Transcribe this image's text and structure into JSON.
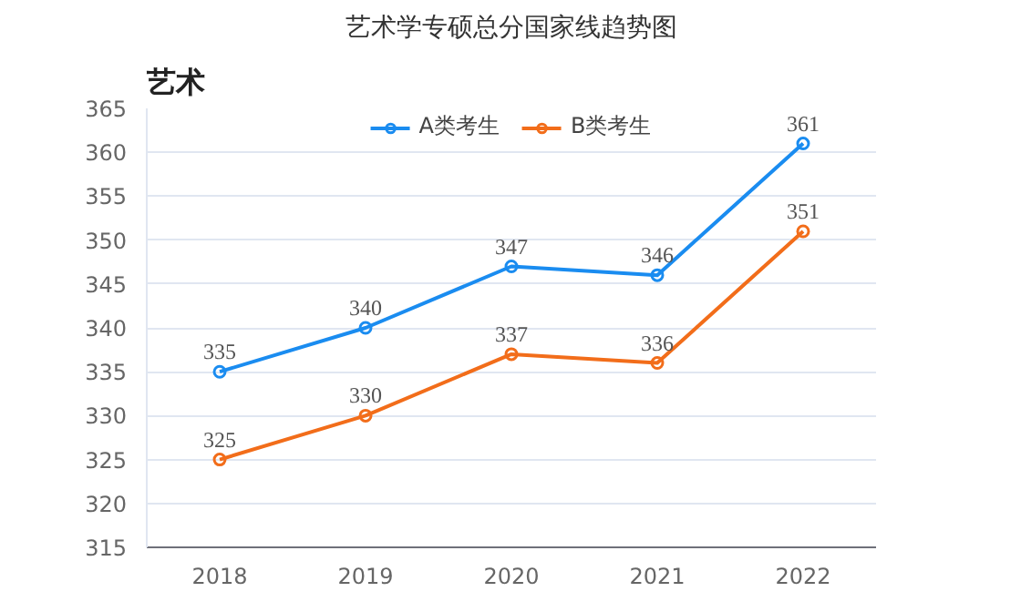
{
  "chart_data": {
    "type": "line",
    "title": "艺术学专硕总分国家线趋势图",
    "annotations": [
      "艺术"
    ],
    "categories": [
      "2018",
      "2019",
      "2020",
      "2021",
      "2022"
    ],
    "series": [
      {
        "name": "A类考生",
        "color": "#1a8cf0",
        "values": [
          335,
          340,
          347,
          346,
          361
        ]
      },
      {
        "name": "B类考生",
        "color": "#f26d1a",
        "values": [
          325,
          330,
          337,
          336,
          351
        ]
      }
    ],
    "ylim": [
      315,
      365
    ],
    "yticks": [
      315,
      320,
      325,
      330,
      335,
      340,
      345,
      350,
      355,
      360,
      365
    ],
    "grid": "y",
    "legend": "top",
    "marker": "circle",
    "line_style": "solid",
    "data_labels": true
  }
}
